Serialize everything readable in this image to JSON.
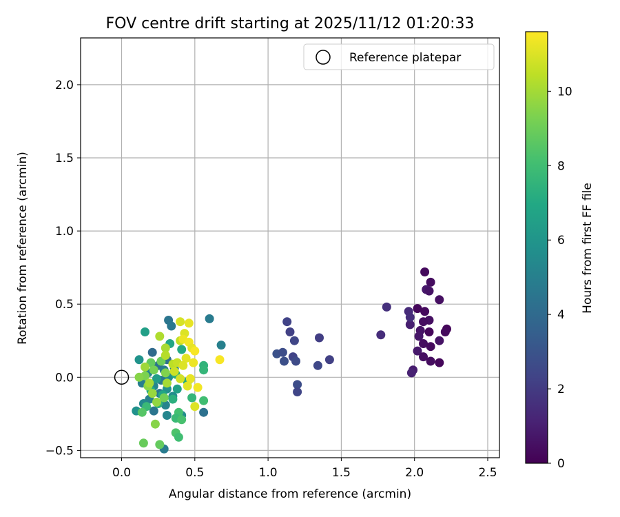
{
  "chart_data": {
    "type": "scatter",
    "title": "FOV centre drift starting at 2025/11/12 01:20:33",
    "xlabel": "Angular distance from reference (arcmin)",
    "ylabel": "Rotation from reference (arcmin)",
    "xlim": [
      -0.28,
      2.58
    ],
    "ylim": [
      -0.55,
      2.32
    ],
    "xticks": [
      0.0,
      0.5,
      1.0,
      1.5,
      2.0,
      2.5
    ],
    "xtick_labels": [
      "0.0",
      "0.5",
      "1.0",
      "1.5",
      "2.0",
      "2.5"
    ],
    "yticks": [
      -0.5,
      0.0,
      0.5,
      1.0,
      1.5,
      2.0
    ],
    "ytick_labels": [
      "−0.5",
      "0.0",
      "0.5",
      "1.0",
      "1.5",
      "2.0"
    ],
    "grid": true,
    "legend": {
      "position": "top-right",
      "label": "Reference platepar"
    },
    "reference_point": {
      "x": 0.0,
      "y": 0.0
    },
    "colorbar": {
      "label": "Hours from first FF file",
      "range": [
        0,
        11.6
      ],
      "ticks": [
        0,
        2,
        4,
        6,
        8,
        10
      ],
      "tick_labels": [
        "0",
        "2",
        "4",
        "6",
        "8",
        "10"
      ],
      "colormap": "viridis"
    },
    "points": [
      {
        "x": 2.07,
        "y": 0.72,
        "c": 0.3
      },
      {
        "x": 2.11,
        "y": 0.65,
        "c": 0.4
      },
      {
        "x": 2.08,
        "y": 0.6,
        "c": 0.8
      },
      {
        "x": 2.1,
        "y": 0.59,
        "c": 0.6
      },
      {
        "x": 2.17,
        "y": 0.53,
        "c": 0.5
      },
      {
        "x": 2.02,
        "y": 0.47,
        "c": 0.2
      },
      {
        "x": 2.07,
        "y": 0.45,
        "c": 0.3
      },
      {
        "x": 2.1,
        "y": 0.39,
        "c": 0.5
      },
      {
        "x": 2.06,
        "y": 0.38,
        "c": 0.4
      },
      {
        "x": 1.97,
        "y": 0.36,
        "c": 1.0
      },
      {
        "x": 2.22,
        "y": 0.33,
        "c": 0.2
      },
      {
        "x": 2.21,
        "y": 0.31,
        "c": 0.3
      },
      {
        "x": 2.04,
        "y": 0.32,
        "c": 0.6
      },
      {
        "x": 2.1,
        "y": 0.31,
        "c": 0.2
      },
      {
        "x": 2.03,
        "y": 0.28,
        "c": 0.7
      },
      {
        "x": 2.17,
        "y": 0.25,
        "c": 0.6
      },
      {
        "x": 2.06,
        "y": 0.23,
        "c": 0.4
      },
      {
        "x": 2.11,
        "y": 0.21,
        "c": 0.3
      },
      {
        "x": 2.02,
        "y": 0.18,
        "c": 0.8
      },
      {
        "x": 2.06,
        "y": 0.14,
        "c": 0.5
      },
      {
        "x": 2.11,
        "y": 0.11,
        "c": 0.4
      },
      {
        "x": 2.17,
        "y": 0.1,
        "c": 0.2
      },
      {
        "x": 1.99,
        "y": 0.05,
        "c": 0.9
      },
      {
        "x": 1.98,
        "y": 0.03,
        "c": 1.1
      },
      {
        "x": 1.81,
        "y": 0.48,
        "c": 1.6
      },
      {
        "x": 1.96,
        "y": 0.45,
        "c": 1.4
      },
      {
        "x": 1.97,
        "y": 0.41,
        "c": 1.5
      },
      {
        "x": 1.77,
        "y": 0.29,
        "c": 1.5
      },
      {
        "x": 1.13,
        "y": 0.38,
        "c": 2.3
      },
      {
        "x": 1.15,
        "y": 0.31,
        "c": 2.2
      },
      {
        "x": 1.35,
        "y": 0.27,
        "c": 2.1
      },
      {
        "x": 1.18,
        "y": 0.25,
        "c": 2.4
      },
      {
        "x": 1.06,
        "y": 0.16,
        "c": 2.9
      },
      {
        "x": 1.1,
        "y": 0.17,
        "c": 2.7
      },
      {
        "x": 1.17,
        "y": 0.14,
        "c": 2.3
      },
      {
        "x": 1.42,
        "y": 0.12,
        "c": 2.2
      },
      {
        "x": 1.11,
        "y": 0.11,
        "c": 2.8
      },
      {
        "x": 1.19,
        "y": 0.11,
        "c": 2.6
      },
      {
        "x": 1.34,
        "y": 0.08,
        "c": 2.5
      },
      {
        "x": 1.2,
        "y": -0.05,
        "c": 2.7
      },
      {
        "x": 1.2,
        "y": -0.1,
        "c": 2.4
      },
      {
        "x": 0.32,
        "y": 0.39,
        "c": 4.5
      },
      {
        "x": 0.6,
        "y": 0.4,
        "c": 4.8
      },
      {
        "x": 0.34,
        "y": 0.35,
        "c": 4.6
      },
      {
        "x": 0.68,
        "y": 0.22,
        "c": 5.0
      },
      {
        "x": 0.21,
        "y": 0.17,
        "c": 4.0
      },
      {
        "x": 0.31,
        "y": 0.12,
        "c": 4.2
      },
      {
        "x": 0.25,
        "y": 0.08,
        "c": 4.4
      },
      {
        "x": 0.36,
        "y": 0.06,
        "c": 5.0
      },
      {
        "x": 0.29,
        "y": 0.05,
        "c": 4.8
      },
      {
        "x": 0.18,
        "y": 0.03,
        "c": 5.2
      },
      {
        "x": 0.32,
        "y": 0.0,
        "c": 5.5
      },
      {
        "x": 0.27,
        "y": -0.02,
        "c": 4.7
      },
      {
        "x": 0.14,
        "y": -0.04,
        "c": 4.9
      },
      {
        "x": 0.22,
        "y": -0.06,
        "c": 5.3
      },
      {
        "x": 0.31,
        "y": -0.08,
        "c": 5.8
      },
      {
        "x": 0.26,
        "y": -0.11,
        "c": 4.6
      },
      {
        "x": 0.35,
        "y": -0.13,
        "c": 5.6
      },
      {
        "x": 0.19,
        "y": -0.15,
        "c": 5.0
      },
      {
        "x": 0.15,
        "y": -0.18,
        "c": 5.4
      },
      {
        "x": 0.3,
        "y": -0.19,
        "c": 5.2
      },
      {
        "x": 0.1,
        "y": -0.23,
        "c": 5.8
      },
      {
        "x": 0.22,
        "y": -0.23,
        "c": 4.5
      },
      {
        "x": 0.56,
        "y": -0.24,
        "c": 4.3
      },
      {
        "x": 0.31,
        "y": -0.26,
        "c": 5.3
      },
      {
        "x": 0.41,
        "y": -0.26,
        "c": 5.6
      },
      {
        "x": 0.29,
        "y": -0.49,
        "c": 4.8
      },
      {
        "x": 0.12,
        "y": 0.12,
        "c": 5.9
      },
      {
        "x": 0.16,
        "y": 0.31,
        "c": 6.5
      },
      {
        "x": 0.33,
        "y": 0.23,
        "c": 6.8
      },
      {
        "x": 0.41,
        "y": 0.19,
        "c": 7.0
      },
      {
        "x": 0.56,
        "y": 0.08,
        "c": 7.5
      },
      {
        "x": 0.56,
        "y": 0.05,
        "c": 7.6
      },
      {
        "x": 0.37,
        "y": 0.02,
        "c": 7.2
      },
      {
        "x": 0.24,
        "y": -0.01,
        "c": 6.4
      },
      {
        "x": 0.45,
        "y": -0.03,
        "c": 7.1
      },
      {
        "x": 0.38,
        "y": -0.08,
        "c": 6.6
      },
      {
        "x": 0.2,
        "y": -0.09,
        "c": 7.0
      },
      {
        "x": 0.28,
        "y": -0.12,
        "c": 6.8
      },
      {
        "x": 0.35,
        "y": -0.15,
        "c": 7.3
      },
      {
        "x": 0.48,
        "y": -0.14,
        "c": 7.6
      },
      {
        "x": 0.56,
        "y": -0.16,
        "c": 8.0
      },
      {
        "x": 0.25,
        "y": -0.18,
        "c": 7.4
      },
      {
        "x": 0.17,
        "y": -0.2,
        "c": 7.8
      },
      {
        "x": 0.39,
        "y": -0.24,
        "c": 8.1
      },
      {
        "x": 0.37,
        "y": -0.28,
        "c": 7.8
      },
      {
        "x": 0.41,
        "y": -0.29,
        "c": 8.2
      },
      {
        "x": 0.37,
        "y": -0.38,
        "c": 8.3
      },
      {
        "x": 0.39,
        "y": -0.41,
        "c": 8.0
      },
      {
        "x": 0.14,
        "y": -0.24,
        "c": 8.5
      },
      {
        "x": 0.15,
        "y": -0.45,
        "c": 8.9
      },
      {
        "x": 0.26,
        "y": -0.46,
        "c": 8.8
      },
      {
        "x": 0.23,
        "y": -0.32,
        "c": 9.5
      },
      {
        "x": 0.2,
        "y": 0.1,
        "c": 8.8
      },
      {
        "x": 0.27,
        "y": 0.11,
        "c": 9.0
      },
      {
        "x": 0.22,
        "y": 0.05,
        "c": 9.2
      },
      {
        "x": 0.3,
        "y": 0.03,
        "c": 9.4
      },
      {
        "x": 0.16,
        "y": 0.01,
        "c": 9.3
      },
      {
        "x": 0.18,
        "y": -0.06,
        "c": 9.6
      },
      {
        "x": 0.21,
        "y": -0.11,
        "c": 9.8
      },
      {
        "x": 0.29,
        "y": -0.14,
        "c": 9.1
      },
      {
        "x": 0.24,
        "y": -0.17,
        "c": 9.7
      },
      {
        "x": 0.16,
        "y": 0.07,
        "c": 9.9
      },
      {
        "x": 0.12,
        "y": 0.0,
        "c": 9.5
      },
      {
        "x": 0.19,
        "y": -0.04,
        "c": 10.0
      },
      {
        "x": 0.26,
        "y": 0.28,
        "c": 10.2
      },
      {
        "x": 0.3,
        "y": 0.2,
        "c": 10.1
      },
      {
        "x": 0.3,
        "y": 0.15,
        "c": 10.3
      },
      {
        "x": 0.35,
        "y": 0.09,
        "c": 10.4
      },
      {
        "x": 0.31,
        "y": -0.04,
        "c": 10.0
      },
      {
        "x": 0.4,
        "y": 0.25,
        "c": 10.5
      },
      {
        "x": 0.38,
        "y": 0.1,
        "c": 10.6
      },
      {
        "x": 0.4,
        "y": 0.38,
        "c": 10.9
      },
      {
        "x": 0.46,
        "y": 0.37,
        "c": 11.2
      },
      {
        "x": 0.43,
        "y": 0.3,
        "c": 11.0
      },
      {
        "x": 0.42,
        "y": 0.26,
        "c": 11.3
      },
      {
        "x": 0.46,
        "y": 0.24,
        "c": 11.4
      },
      {
        "x": 0.48,
        "y": 0.2,
        "c": 11.2
      },
      {
        "x": 0.5,
        "y": 0.18,
        "c": 11.5
      },
      {
        "x": 0.44,
        "y": 0.13,
        "c": 11.1
      },
      {
        "x": 0.49,
        "y": 0.1,
        "c": 11.3
      },
      {
        "x": 0.42,
        "y": 0.08,
        "c": 11.0
      },
      {
        "x": 0.67,
        "y": 0.12,
        "c": 11.5
      },
      {
        "x": 0.47,
        "y": -0.01,
        "c": 11.2
      },
      {
        "x": 0.4,
        "y": -0.01,
        "c": 10.8
      },
      {
        "x": 0.45,
        "y": -0.06,
        "c": 11.1
      },
      {
        "x": 0.52,
        "y": -0.07,
        "c": 11.4
      },
      {
        "x": 0.5,
        "y": -0.2,
        "c": 11.0
      },
      {
        "x": 0.36,
        "y": 0.04,
        "c": 10.7
      }
    ]
  }
}
